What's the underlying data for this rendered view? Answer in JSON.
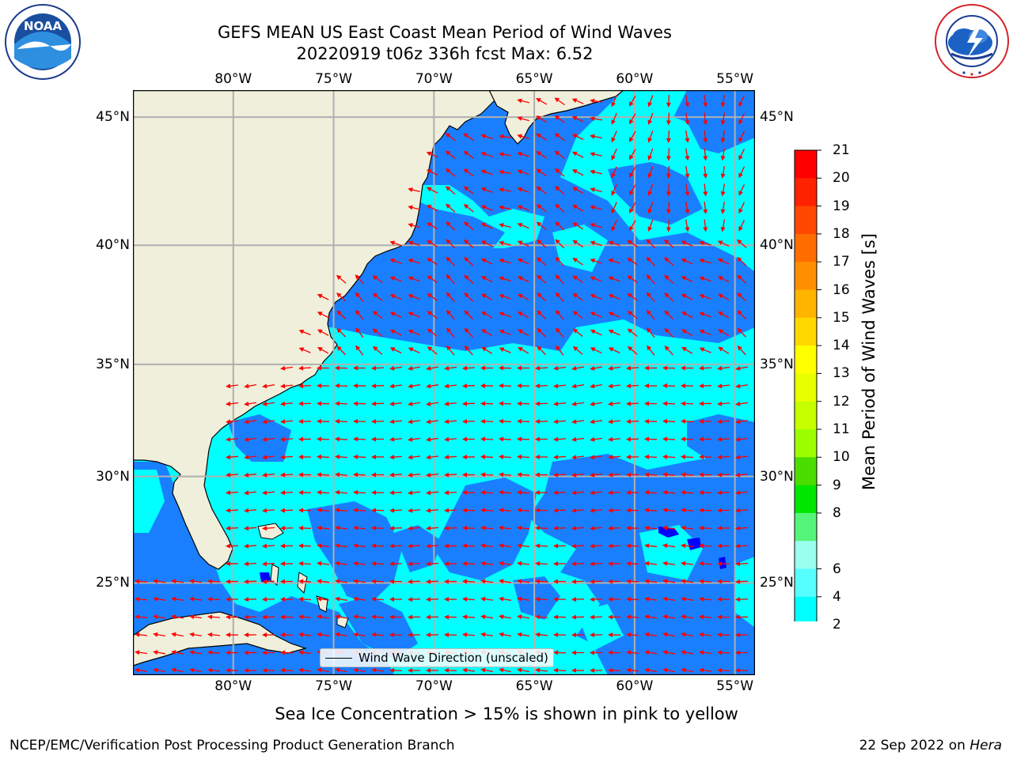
{
  "header": {
    "title_line1": "GEFS MEAN US East Coast Mean Period of Wind Waves",
    "title_line2": "20220919 t06z 336h fcst   Max: 6.52"
  },
  "logos": {
    "left": {
      "text": "NOAA",
      "ring_text": "NATIONAL OCEANIC AND ATMOSPHERIC ADMINISTRATION · U.S. DEPARTMENT OF COMMERCE"
    },
    "right": {
      "ring_text": "NATIONAL WEATHER SERVICE"
    }
  },
  "axes": {
    "lon_labels": [
      "80°W",
      "75°W",
      "70°W",
      "65°W",
      "60°W",
      "55°W"
    ],
    "lat_labels": [
      "45°N",
      "40°N",
      "35°N",
      "30°N",
      "25°N"
    ],
    "lon_range": [
      -85,
      -54
    ],
    "lat_range": [
      20.5,
      46
    ]
  },
  "legend": {
    "label": "Wind Wave Direction (unscaled)"
  },
  "colorbar": {
    "label": "Mean Period of Wind Waves [s]",
    "ticks": [
      "21",
      "20",
      "19",
      "18",
      "17",
      "16",
      "15",
      "14",
      "13",
      "12",
      "11",
      "10",
      "9",
      "8",
      "6",
      "4",
      "2"
    ],
    "colors": [
      "#ff0000",
      "#ff2200",
      "#ff4800",
      "#ff6c00",
      "#ff8f00",
      "#ffb400",
      "#ffd800",
      "#ffff00",
      "#e8ff00",
      "#c6ff00",
      "#9cff00",
      "#4cdd00",
      "#00e600",
      "#55f57a",
      "#99ffee",
      "#55ffff",
      "#00ffff",
      "#0080ff"
    ],
    "under_color": "#0000ff"
  },
  "colors": {
    "land": "#efefdb",
    "period_4_6": "#00ffff",
    "period_2_4": "#1a7fff",
    "period_under_2": "#0000ff",
    "arrow": "#ff0000",
    "grid": "#b0b0b0"
  },
  "note": "Sea Ice Concentration > 15% is shown in pink to yellow",
  "footer": {
    "left": "NCEP/EMC/Verification Post Processing Product Generation Branch",
    "date": "22 Sep 2022",
    "on": "on",
    "machine": "Hera"
  }
}
